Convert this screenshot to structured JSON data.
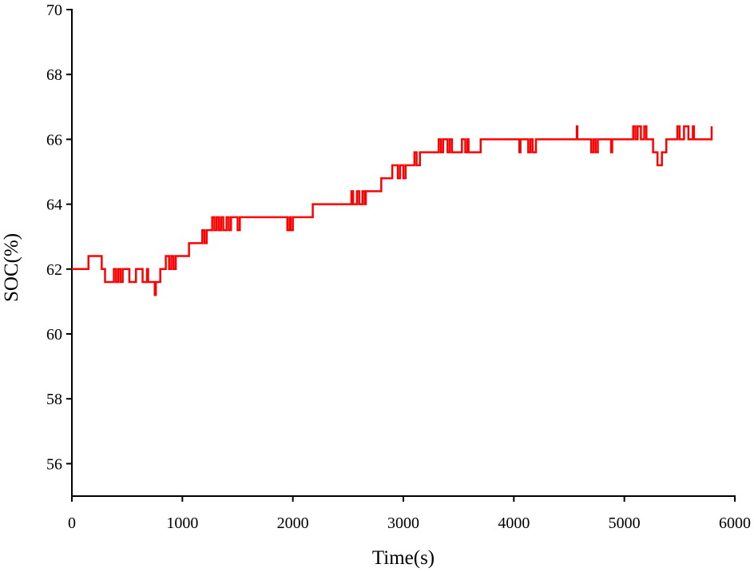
{
  "chart_data": {
    "type": "line",
    "x_label": "Time(s)",
    "y_label": "SOC(%)",
    "xlim": [
      0,
      6000
    ],
    "xticks": [
      0,
      1000,
      2000,
      3000,
      4000,
      5000,
      6000
    ],
    "ylim": [
      55,
      70
    ],
    "yticks": [
      56,
      58,
      60,
      62,
      64,
      66,
      68,
      70
    ],
    "grid": false,
    "x": [
      0,
      150,
      150,
      270,
      270,
      300,
      300,
      380,
      380,
      400,
      400,
      420,
      420,
      440,
      440,
      460,
      460,
      520,
      520,
      580,
      580,
      640,
      640,
      680,
      680,
      690,
      690,
      750,
      750,
      760,
      760,
      800,
      800,
      850,
      850,
      880,
      880,
      900,
      900,
      920,
      920,
      940,
      940,
      1060,
      1060,
      1180,
      1180,
      1200,
      1200,
      1220,
      1220,
      1270,
      1270,
      1290,
      1290,
      1310,
      1310,
      1330,
      1330,
      1350,
      1350,
      1370,
      1370,
      1400,
      1400,
      1420,
      1420,
      1440,
      1440,
      1500,
      1500,
      1520,
      1520,
      1950,
      1950,
      1970,
      1970,
      1980,
      1980,
      2000,
      2000,
      2180,
      2180,
      2530,
      2530,
      2545,
      2545,
      2580,
      2580,
      2600,
      2600,
      2630,
      2630,
      2650,
      2650,
      2660,
      2660,
      2800,
      2800,
      2900,
      2900,
      2950,
      2950,
      2970,
      2970,
      3000,
      3000,
      3020,
      3020,
      3100,
      3100,
      3120,
      3120,
      3150,
      3150,
      3320,
      3320,
      3340,
      3340,
      3360,
      3360,
      3400,
      3400,
      3420,
      3420,
      3440,
      3440,
      3530,
      3530,
      3560,
      3560,
      3580,
      3580,
      3590,
      3590,
      3700,
      3700,
      4050,
      4050,
      4060,
      4060,
      4130,
      4130,
      4150,
      4150,
      4170,
      4170,
      4200,
      4200,
      4570,
      4570,
      4575,
      4575,
      4700,
      4700,
      4720,
      4720,
      4740,
      4740,
      4760,
      4760,
      4880,
      4880,
      4890,
      4890,
      5080,
      5080,
      5100,
      5100,
      5120,
      5120,
      5150,
      5150,
      5180,
      5180,
      5200,
      5200,
      5260,
      5260,
      5300,
      5300,
      5340,
      5340,
      5380,
      5380,
      5480,
      5480,
      5500,
      5500,
      5540,
      5540,
      5580,
      5580,
      5620,
      5620,
      5630,
      5630,
      5790,
      5790
    ],
    "series": [
      {
        "name": "SOC",
        "color": "#ff0000",
        "values": [
          62,
          62,
          62.4,
          62.4,
          62,
          62,
          61.6,
          61.6,
          62,
          62,
          61.6,
          61.6,
          62,
          62,
          61.6,
          61.6,
          62,
          62,
          61.6,
          61.6,
          62,
          62,
          61.6,
          61.6,
          62,
          62,
          61.6,
          61.6,
          61.2,
          61.2,
          61.6,
          61.6,
          62,
          62,
          62.4,
          62.4,
          62,
          62,
          62.4,
          62.4,
          62,
          62,
          62.4,
          62.4,
          62.8,
          62.8,
          63.2,
          63.2,
          62.8,
          62.8,
          63.2,
          63.2,
          63.6,
          63.6,
          63.2,
          63.2,
          63.6,
          63.6,
          63.2,
          63.2,
          63.6,
          63.6,
          63.2,
          63.2,
          63.6,
          63.6,
          63.2,
          63.2,
          63.6,
          63.6,
          63.2,
          63.2,
          63.6,
          63.6,
          63.2,
          63.2,
          63.6,
          63.6,
          63.2,
          63.2,
          63.6,
          63.6,
          64,
          64,
          64.4,
          64.4,
          64,
          64,
          64.4,
          64.4,
          64,
          64,
          64.4,
          64.4,
          64,
          64,
          64.4,
          64.4,
          64.8,
          64.8,
          65.2,
          65.2,
          64.8,
          64.8,
          65.2,
          65.2,
          64.8,
          64.8,
          65.2,
          65.2,
          65.6,
          65.6,
          65.2,
          65.2,
          65.6,
          65.6,
          66,
          66,
          65.6,
          65.6,
          66,
          66,
          65.6,
          65.6,
          66,
          66,
          65.6,
          65.6,
          66,
          66,
          65.6,
          65.6,
          66,
          66,
          65.6,
          65.6,
          66,
          66,
          65.6,
          65.6,
          66,
          66,
          65.6,
          65.6,
          66,
          66,
          65.6,
          65.6,
          66,
          66,
          66.4,
          66.4,
          66,
          66,
          65.6,
          65.6,
          66,
          66,
          65.6,
          65.6,
          66,
          66,
          65.6,
          65.6,
          66,
          66,
          66.4,
          66.4,
          66,
          66,
          66.4,
          66.4,
          66,
          66,
          66.4,
          66.4,
          66,
          66,
          65.6,
          65.6,
          65.2,
          65.2,
          65.6,
          65.6,
          66,
          66,
          66.4,
          66.4,
          66,
          66,
          66.4,
          66.4,
          66,
          66,
          66.4,
          66.4,
          66,
          66,
          66.4
        ]
      }
    ]
  }
}
